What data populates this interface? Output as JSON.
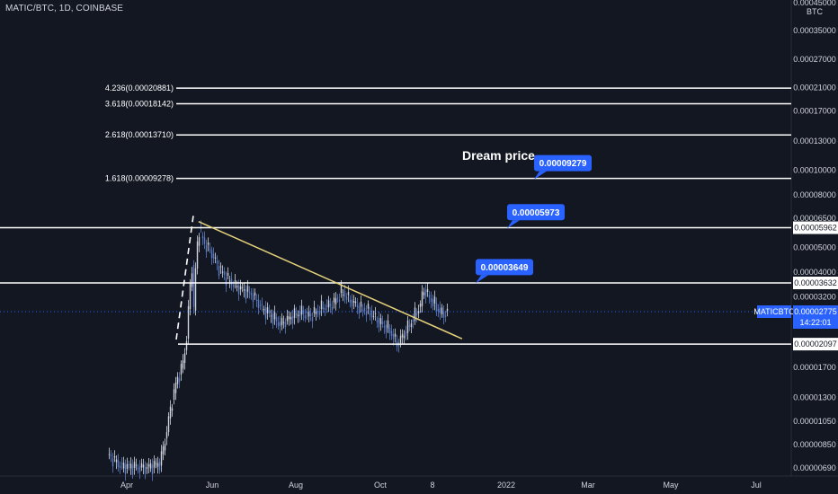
{
  "header": {
    "symbol": "MATIC/BTC, 1D, COINBASE"
  },
  "price_axis": {
    "unit": "BTC",
    "top_label": "0.00045000",
    "labels": [
      "0.00035000",
      "0.00027000",
      "0.00021000",
      "0.00017000",
      "0.00013000",
      "0.00010000",
      "0.00008000",
      "0.00006500",
      "0.00005000",
      "0.00004000",
      "0.00003200",
      "0.00002500",
      "0.00001700",
      "0.00001300",
      "0.00001050",
      "0.00000850",
      "0.00000690"
    ]
  },
  "time_axis": {
    "labels": [
      "Apr",
      "Jun",
      "Aug",
      "Oct",
      "8",
      "2022",
      "Mar",
      "May",
      "Jul"
    ]
  },
  "fib_levels": [
    {
      "label": "4.236(0.00020881)",
      "price": 0.00020881
    },
    {
      "label": "3.618(0.00018142)",
      "price": 0.00018142
    },
    {
      "label": "2.618(0.00013710)",
      "price": 0.0001371
    },
    {
      "label": "1.618(0.00009278)",
      "price": 9.278e-05
    }
  ],
  "horizontal_levels": [
    {
      "label": "0.00005962",
      "price": 5.962e-05
    },
    {
      "label": "0.00003632",
      "price": 3.632e-05
    },
    {
      "label": "0.00002097",
      "price": 2.097e-05
    }
  ],
  "annotations": {
    "dream_price": "Dream price",
    "callouts": [
      {
        "label": "0.00009279",
        "price": 9.279e-05
      },
      {
        "label": "0.00005973",
        "price": 5.973e-05
      },
      {
        "label": "0.00003649",
        "price": 3.649e-05
      }
    ]
  },
  "current": {
    "ticker": "MATICBTC",
    "price": "0.00002775",
    "countdown": "14:22:01"
  },
  "colors": {
    "background": "#131722",
    "candle_up": "#d1d4dc",
    "candle_down": "#5b7cc4",
    "trendline": "#e6d27a",
    "level_line": "#ffffff",
    "callout": "#2962ff",
    "price_line": "#2962ff"
  },
  "chart_data": {
    "type": "candlestick",
    "symbol": "MATIC/BTC",
    "interval": "1D",
    "exchange": "COINBASE",
    "scale": "log",
    "y_unit": "BTC",
    "x_ticks": [
      "Apr",
      "Jun",
      "Aug",
      "Oct",
      "8",
      "2022",
      "Mar",
      "May",
      "Jul"
    ],
    "close_path": [
      {
        "date": "2021-03-18",
        "close": 7.8e-06
      },
      {
        "date": "2021-03-28",
        "close": 7e-06
      },
      {
        "date": "2021-04-05",
        "close": 7e-06
      },
      {
        "date": "2021-04-15",
        "close": 6.9e-06
      },
      {
        "date": "2021-04-25",
        "close": 7.2e-06
      },
      {
        "date": "2021-04-29",
        "close": 9e-06
      },
      {
        "date": "2021-05-03",
        "close": 1.2e-05
      },
      {
        "date": "2021-05-07",
        "close": 1.5e-05
      },
      {
        "date": "2021-05-11",
        "close": 1.7e-05
      },
      {
        "date": "2021-05-14",
        "close": 2.1e-05
      },
      {
        "date": "2021-05-17",
        "close": 3.6e-05
      },
      {
        "date": "2021-05-18",
        "close": 5e-05
      },
      {
        "date": "2021-05-19",
        "close": 2.5e-05
      },
      {
        "date": "2021-05-21",
        "close": 4.2e-05
      },
      {
        "date": "2021-05-23",
        "close": 6e-05
      },
      {
        "date": "2021-05-27",
        "close": 5.2e-05
      },
      {
        "date": "2021-06-01",
        "close": 4.8e-05
      },
      {
        "date": "2021-06-06",
        "close": 4.2e-05
      },
      {
        "date": "2021-06-12",
        "close": 3.8e-05
      },
      {
        "date": "2021-06-20",
        "close": 3.5e-05
      },
      {
        "date": "2021-06-30",
        "close": 3.3e-05
      },
      {
        "date": "2021-07-08",
        "close": 2.9e-05
      },
      {
        "date": "2021-07-15",
        "close": 2.7e-05
      },
      {
        "date": "2021-07-21",
        "close": 2.5e-05
      },
      {
        "date": "2021-07-28",
        "close": 2.65e-05
      },
      {
        "date": "2021-08-05",
        "close": 2.8e-05
      },
      {
        "date": "2021-08-12",
        "close": 2.7e-05
      },
      {
        "date": "2021-08-20",
        "close": 2.9e-05
      },
      {
        "date": "2021-08-28",
        "close": 3e-05
      },
      {
        "date": "2021-09-04",
        "close": 3.35e-05
      },
      {
        "date": "2021-09-10",
        "close": 3.1e-05
      },
      {
        "date": "2021-09-17",
        "close": 2.9e-05
      },
      {
        "date": "2021-09-24",
        "close": 2.8e-05
      },
      {
        "date": "2021-10-01",
        "close": 2.55e-05
      },
      {
        "date": "2021-10-08",
        "close": 2.4e-05
      },
      {
        "date": "2021-10-14",
        "close": 2.1e-05
      },
      {
        "date": "2021-10-19",
        "close": 2.3e-05
      },
      {
        "date": "2021-10-25",
        "close": 2.6e-05
      },
      {
        "date": "2021-10-31",
        "close": 3e-05
      },
      {
        "date": "2021-11-02",
        "close": 3.45e-05
      },
      {
        "date": "2021-11-06",
        "close": 3.2e-05
      },
      {
        "date": "2021-11-10",
        "close": 3e-05
      },
      {
        "date": "2021-11-15",
        "close": 2.75e-05
      },
      {
        "date": "2021-11-20",
        "close": 2.78e-05
      }
    ],
    "trendline": [
      {
        "date": "2021-05-23",
        "price": 6.3e-05
      },
      {
        "date": "2021-11-30",
        "price": 2.2e-05
      }
    ],
    "fib_extensions": [
      {
        "ratio": 4.236,
        "price": 0.00020881
      },
      {
        "ratio": 3.618,
        "price": 0.00018142
      },
      {
        "ratio": 2.618,
        "price": 0.0001371
      },
      {
        "ratio": 1.618,
        "price": 9.278e-05
      }
    ],
    "horizontal_levels": [
      5.962e-05,
      3.632e-05,
      2.097e-05
    ],
    "last_price": 2.775e-05
  }
}
